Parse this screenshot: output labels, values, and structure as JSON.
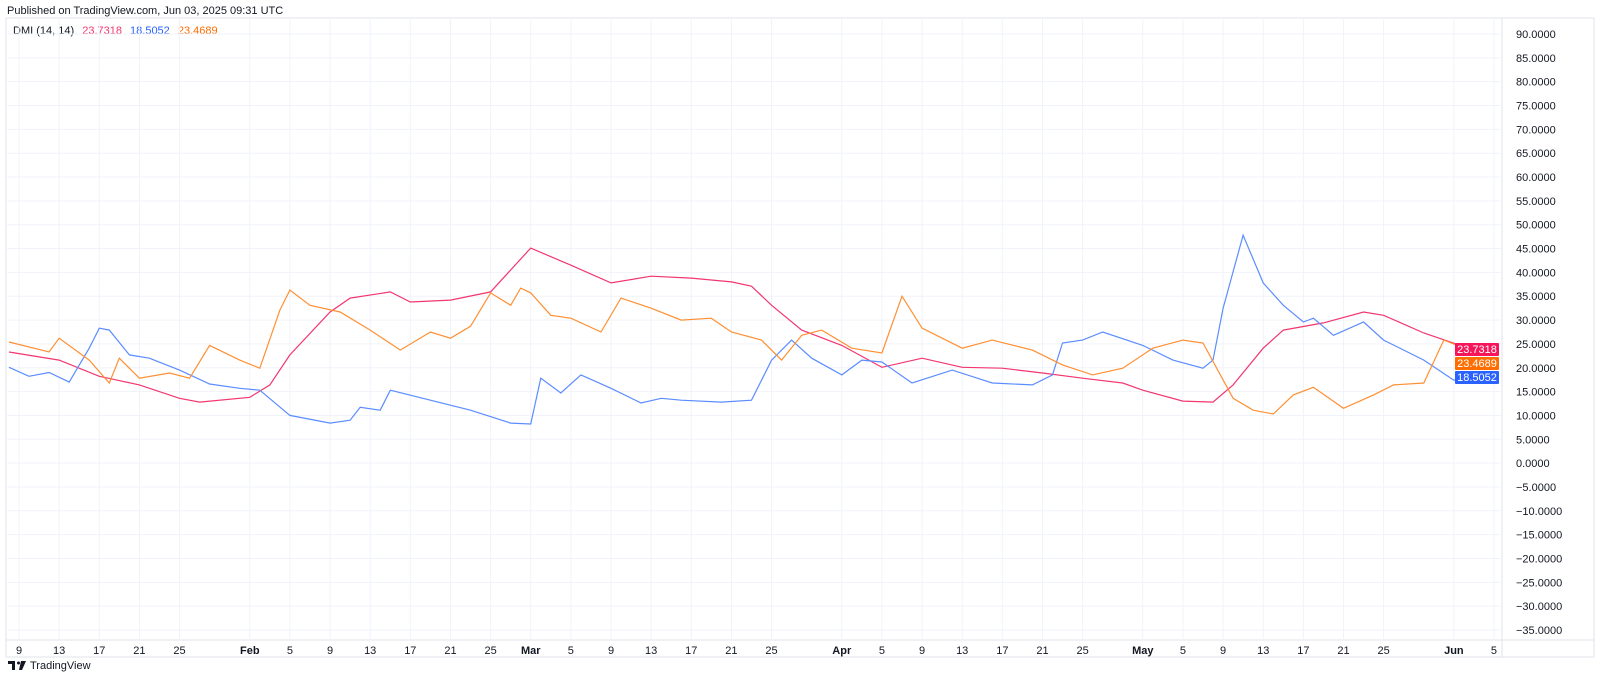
{
  "header": {
    "published": "Published on TradingView.com, Jun 03, 2025 09:31 UTC"
  },
  "legend": {
    "indicator": "DMI (14, 14)",
    "values": [
      "23.7318",
      "18.5052",
      "23.4689"
    ]
  },
  "brand": {
    "name": "TradingView",
    "logo_icon": "tradingview-logo-icon"
  },
  "colors": {
    "red": "#f23670",
    "blue": "#5b8cff",
    "orange": "#ff8f33",
    "red_label": "#f7155a",
    "blue_label": "#2962ff",
    "orange_label": "#ff6d00"
  },
  "chart_data": {
    "type": "line",
    "title": "",
    "ylim": [
      -35,
      90
    ],
    "grid": true,
    "yticks": [
      "90.0000",
      "85.0000",
      "80.0000",
      "75.0000",
      "70.0000",
      "65.0000",
      "60.0000",
      "55.0000",
      "50.0000",
      "45.0000",
      "40.0000",
      "35.0000",
      "30.0000",
      "25.0000",
      "20.0000",
      "15.0000",
      "10.0000",
      "5.0000",
      "0.0000",
      "−5.0000",
      "−10.0000",
      "−15.0000",
      "−20.0000",
      "−25.0000",
      "−30.0000",
      "−35.0000"
    ],
    "xticks": [
      {
        "date": "2025-01-09",
        "label": "9"
      },
      {
        "date": "2025-01-13",
        "label": "13"
      },
      {
        "date": "2025-01-17",
        "label": "17"
      },
      {
        "date": "2025-01-21",
        "label": "21"
      },
      {
        "date": "2025-01-25",
        "label": "25"
      },
      {
        "date": "2025-02-01",
        "label": "Feb",
        "bold": true
      },
      {
        "date": "2025-02-05",
        "label": "5"
      },
      {
        "date": "2025-02-09",
        "label": "9"
      },
      {
        "date": "2025-02-13",
        "label": "13"
      },
      {
        "date": "2025-02-17",
        "label": "17"
      },
      {
        "date": "2025-02-21",
        "label": "21"
      },
      {
        "date": "2025-02-25",
        "label": "25"
      },
      {
        "date": "2025-03-01",
        "label": "Mar",
        "bold": true
      },
      {
        "date": "2025-03-05",
        "label": "5"
      },
      {
        "date": "2025-03-09",
        "label": "9"
      },
      {
        "date": "2025-03-13",
        "label": "13"
      },
      {
        "date": "2025-03-17",
        "label": "17"
      },
      {
        "date": "2025-03-21",
        "label": "21"
      },
      {
        "date": "2025-03-25",
        "label": "25"
      },
      {
        "date": "2025-04-01",
        "label": "Apr",
        "bold": true
      },
      {
        "date": "2025-04-05",
        "label": "5"
      },
      {
        "date": "2025-04-09",
        "label": "9"
      },
      {
        "date": "2025-04-13",
        "label": "13"
      },
      {
        "date": "2025-04-17",
        "label": "17"
      },
      {
        "date": "2025-04-21",
        "label": "21"
      },
      {
        "date": "2025-04-25",
        "label": "25"
      },
      {
        "date": "2025-05-01",
        "label": "May",
        "bold": true
      },
      {
        "date": "2025-05-05",
        "label": "5"
      },
      {
        "date": "2025-05-09",
        "label": "9"
      },
      {
        "date": "2025-05-13",
        "label": "13"
      },
      {
        "date": "2025-05-17",
        "label": "17"
      },
      {
        "date": "2025-05-21",
        "label": "21"
      },
      {
        "date": "2025-05-25",
        "label": "25"
      },
      {
        "date": "2025-06-01",
        "label": "Jun",
        "bold": true
      },
      {
        "date": "2025-06-05",
        "label": "5"
      }
    ],
    "series": [
      {
        "color": "#f23670",
        "last": "23.7318",
        "points": [
          [
            "2025-01-08",
            23.3
          ],
          [
            "2025-01-13",
            21.6
          ],
          [
            "2025-01-17",
            18.2
          ],
          [
            "2025-01-21",
            16.4
          ],
          [
            "2025-01-25",
            13.6
          ],
          [
            "2025-01-27",
            12.8
          ],
          [
            "2025-02-01",
            13.8
          ],
          [
            "2025-02-03",
            16.4
          ],
          [
            "2025-02-05",
            22.7
          ],
          [
            "2025-02-09",
            31.7
          ],
          [
            "2025-02-11",
            34.6
          ],
          [
            "2025-02-15",
            35.9
          ],
          [
            "2025-02-17",
            33.8
          ],
          [
            "2025-02-21",
            34.2
          ],
          [
            "2025-02-25",
            35.9
          ],
          [
            "2025-03-01",
            45.1
          ],
          [
            "2025-03-05",
            41.5
          ],
          [
            "2025-03-09",
            37.8
          ],
          [
            "2025-03-13",
            39.2
          ],
          [
            "2025-03-17",
            38.8
          ],
          [
            "2025-03-21",
            38.0
          ],
          [
            "2025-03-23",
            37.1
          ],
          [
            "2025-03-25",
            33.1
          ],
          [
            "2025-03-28",
            27.9
          ],
          [
            "2025-04-01",
            24.7
          ],
          [
            "2025-04-05",
            20.1
          ],
          [
            "2025-04-09",
            22.0
          ],
          [
            "2025-04-13",
            20.1
          ],
          [
            "2025-04-17",
            19.9
          ],
          [
            "2025-04-21",
            18.9
          ],
          [
            "2025-04-25",
            17.8
          ],
          [
            "2025-04-29",
            16.8
          ],
          [
            "2025-05-01",
            15.3
          ],
          [
            "2025-05-05",
            13.0
          ],
          [
            "2025-05-08",
            12.8
          ],
          [
            "2025-05-10",
            16.4
          ],
          [
            "2025-05-13",
            24.1
          ],
          [
            "2025-05-15",
            27.9
          ],
          [
            "2025-05-19",
            29.4
          ],
          [
            "2025-05-23",
            31.7
          ],
          [
            "2025-05-25",
            31.0
          ],
          [
            "2025-05-29",
            27.3
          ],
          [
            "2025-06-03",
            23.7
          ]
        ]
      },
      {
        "color": "#5b8cff",
        "last": "18.5052",
        "points": [
          [
            "2025-01-08",
            20.1
          ],
          [
            "2025-01-10",
            18.2
          ],
          [
            "2025-01-12",
            19.0
          ],
          [
            "2025-01-14",
            17.0
          ],
          [
            "2025-01-16",
            24.1
          ],
          [
            "2025-01-17",
            28.3
          ],
          [
            "2025-01-18",
            27.9
          ],
          [
            "2025-01-20",
            22.7
          ],
          [
            "2025-01-22",
            22.0
          ],
          [
            "2025-01-25",
            19.5
          ],
          [
            "2025-01-28",
            16.6
          ],
          [
            "2025-01-31",
            15.7
          ],
          [
            "2025-02-02",
            15.3
          ],
          [
            "2025-02-05",
            10.0
          ],
          [
            "2025-02-09",
            8.4
          ],
          [
            "2025-02-11",
            9.0
          ],
          [
            "2025-02-12",
            11.7
          ],
          [
            "2025-02-14",
            11.1
          ],
          [
            "2025-02-15",
            15.3
          ],
          [
            "2025-02-19",
            13.2
          ],
          [
            "2025-02-23",
            11.1
          ],
          [
            "2025-02-27",
            8.4
          ],
          [
            "2025-03-01",
            8.2
          ],
          [
            "2025-03-02",
            17.8
          ],
          [
            "2025-03-04",
            14.7
          ],
          [
            "2025-03-06",
            18.5
          ],
          [
            "2025-03-09",
            15.7
          ],
          [
            "2025-03-12",
            12.6
          ],
          [
            "2025-03-14",
            13.6
          ],
          [
            "2025-03-16",
            13.2
          ],
          [
            "2025-03-20",
            12.8
          ],
          [
            "2025-03-23",
            13.2
          ],
          [
            "2025-03-25",
            21.6
          ],
          [
            "2025-03-27",
            25.8
          ],
          [
            "2025-03-29",
            22.0
          ],
          [
            "2025-04-01",
            18.5
          ],
          [
            "2025-04-03",
            21.6
          ],
          [
            "2025-04-05",
            21.2
          ],
          [
            "2025-04-08",
            16.8
          ],
          [
            "2025-04-12",
            19.5
          ],
          [
            "2025-04-16",
            16.8
          ],
          [
            "2025-04-20",
            16.4
          ],
          [
            "2025-04-22",
            18.5
          ],
          [
            "2025-04-23",
            25.2
          ],
          [
            "2025-04-25",
            25.8
          ],
          [
            "2025-04-27",
            27.5
          ],
          [
            "2025-05-01",
            24.7
          ],
          [
            "2025-05-04",
            21.6
          ],
          [
            "2025-05-07",
            19.9
          ],
          [
            "2025-05-08",
            21.6
          ],
          [
            "2025-05-09",
            32.5
          ],
          [
            "2025-05-11",
            47.8
          ],
          [
            "2025-05-13",
            37.8
          ],
          [
            "2025-05-15",
            33.1
          ],
          [
            "2025-05-17",
            29.6
          ],
          [
            "2025-05-18",
            30.4
          ],
          [
            "2025-05-20",
            26.8
          ],
          [
            "2025-05-23",
            29.6
          ],
          [
            "2025-05-25",
            25.8
          ],
          [
            "2025-05-29",
            21.6
          ],
          [
            "2025-06-01",
            17.4
          ],
          [
            "2025-06-03",
            18.5
          ]
        ]
      },
      {
        "color": "#ff8f33",
        "last": "23.4689",
        "points": [
          [
            "2025-01-08",
            25.4
          ],
          [
            "2025-01-12",
            23.3
          ],
          [
            "2025-01-13",
            26.2
          ],
          [
            "2025-01-16",
            21.6
          ],
          [
            "2025-01-18",
            16.8
          ],
          [
            "2025-01-19",
            22.0
          ],
          [
            "2025-01-21",
            17.8
          ],
          [
            "2025-01-24",
            18.9
          ],
          [
            "2025-01-26",
            17.8
          ],
          [
            "2025-01-28",
            24.7
          ],
          [
            "2025-01-31",
            21.6
          ],
          [
            "2025-02-02",
            19.9
          ],
          [
            "2025-02-04",
            32.1
          ],
          [
            "2025-02-05",
            36.3
          ],
          [
            "2025-02-07",
            33.1
          ],
          [
            "2025-02-10",
            31.7
          ],
          [
            "2025-02-13",
            27.9
          ],
          [
            "2025-02-16",
            23.7
          ],
          [
            "2025-02-19",
            27.5
          ],
          [
            "2025-02-21",
            26.2
          ],
          [
            "2025-02-23",
            28.7
          ],
          [
            "2025-02-25",
            35.7
          ],
          [
            "2025-02-27",
            33.1
          ],
          [
            "2025-02-28",
            36.7
          ],
          [
            "2025-03-01",
            35.7
          ],
          [
            "2025-03-03",
            31.0
          ],
          [
            "2025-03-05",
            30.4
          ],
          [
            "2025-03-08",
            27.5
          ],
          [
            "2025-03-10",
            34.6
          ],
          [
            "2025-03-13",
            32.5
          ],
          [
            "2025-03-16",
            30.0
          ],
          [
            "2025-03-19",
            30.4
          ],
          [
            "2025-03-21",
            27.5
          ],
          [
            "2025-03-24",
            25.8
          ],
          [
            "2025-03-26",
            21.6
          ],
          [
            "2025-03-28",
            26.8
          ],
          [
            "2025-03-30",
            27.9
          ],
          [
            "2025-04-02",
            24.1
          ],
          [
            "2025-04-05",
            23.1
          ],
          [
            "2025-04-07",
            35.0
          ],
          [
            "2025-04-09",
            28.3
          ],
          [
            "2025-04-13",
            24.1
          ],
          [
            "2025-04-16",
            25.8
          ],
          [
            "2025-04-20",
            23.7
          ],
          [
            "2025-04-23",
            20.6
          ],
          [
            "2025-04-26",
            18.5
          ],
          [
            "2025-04-29",
            19.9
          ],
          [
            "2025-05-02",
            24.1
          ],
          [
            "2025-05-05",
            25.8
          ],
          [
            "2025-05-07",
            25.2
          ],
          [
            "2025-05-10",
            13.6
          ],
          [
            "2025-05-12",
            11.1
          ],
          [
            "2025-05-14",
            10.3
          ],
          [
            "2025-05-16",
            14.3
          ],
          [
            "2025-05-18",
            15.9
          ],
          [
            "2025-05-21",
            11.5
          ],
          [
            "2025-05-24",
            14.3
          ],
          [
            "2025-05-26",
            16.4
          ],
          [
            "2025-05-29",
            16.8
          ],
          [
            "2025-05-31",
            25.8
          ],
          [
            "2025-06-03",
            23.3
          ]
        ]
      }
    ]
  }
}
